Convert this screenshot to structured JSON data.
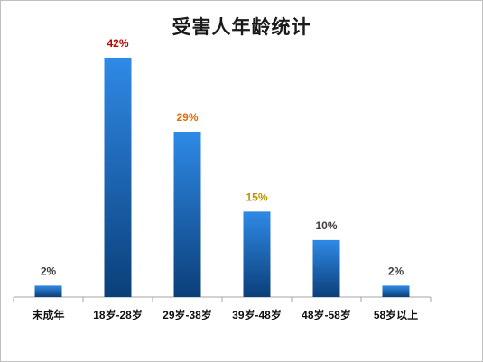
{
  "chart_data": {
    "type": "bar",
    "title": "受害人年龄统计",
    "xlabel": "",
    "ylabel": "",
    "categories": [
      "未成年",
      "18岁-28岁",
      "29岁-38岁",
      "39岁-48岁",
      "48岁-58岁",
      "58岁以上"
    ],
    "values": [
      2,
      42,
      29,
      15,
      10,
      2
    ],
    "value_labels": [
      "2%",
      "42%",
      "29%",
      "15%",
      "10%",
      "2%"
    ],
    "value_label_colors": [
      "#404040",
      "#c00000",
      "#e46c0a",
      "#c09000",
      "#404040",
      "#404040"
    ],
    "ylim": [
      0,
      45
    ],
    "grid": false,
    "legend": "none",
    "bar_color_top": "#2f8ae6",
    "bar_color_bottom": "#0b3f7a"
  }
}
